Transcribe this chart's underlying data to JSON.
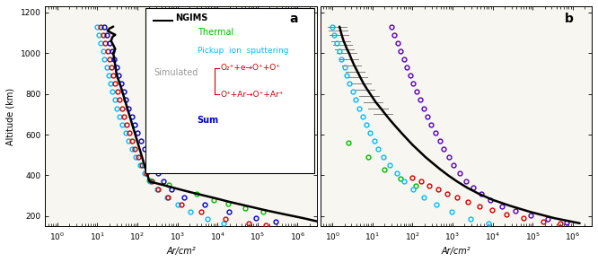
{
  "fig_width": 6.66,
  "fig_height": 2.92,
  "dpi": 100,
  "background_color": "#ffffff",
  "plot_bg": "#f8f6f0",
  "xlim_a": [
    0.5,
    3000000
  ],
  "xlim_b": [
    0.5,
    3000000
  ],
  "ylim": [
    150,
    1230
  ],
  "xlabel": "Ar/cm²",
  "ylabel": "Altitude (km)",
  "panel_labels": [
    "a",
    "b"
  ],
  "ngims_a": {
    "color": "black",
    "altitudes": [
      1130,
      1120,
      1110,
      1100,
      1090,
      1080,
      1060,
      1040,
      1020,
      1000,
      980,
      960,
      940,
      920,
      900,
      880,
      860,
      840,
      370,
      350,
      330,
      310,
      290,
      270,
      250,
      230,
      210,
      190,
      175
    ],
    "values": [
      25,
      20,
      18,
      22,
      28,
      24,
      22,
      25,
      28,
      25,
      26,
      27,
      28,
      29,
      30,
      32,
      35,
      38,
      200,
      500,
      1200,
      3000,
      8000,
      20000,
      55000,
      150000,
      450000,
      1400000,
      3000000
    ]
  },
  "ngims_b": {
    "color": "black",
    "altitudes": [
      1130,
      1110,
      1090,
      1060,
      1040,
      1020,
      1000,
      970,
      940,
      910,
      880,
      850,
      820,
      790,
      760,
      730,
      700,
      670,
      640,
      610,
      580,
      550,
      520,
      490,
      460,
      430,
      400,
      370,
      340,
      310,
      280,
      250,
      220,
      190,
      165
    ],
    "values": [
      1.5,
      1.6,
      1.7,
      1.9,
      2.1,
      2.3,
      2.6,
      3.0,
      3.5,
      4.2,
      5.0,
      6.0,
      7.5,
      9.5,
      12,
      16,
      21,
      28,
      38,
      52,
      72,
      100,
      145,
      210,
      320,
      490,
      780,
      1300,
      2300,
      4500,
      10000,
      28000,
      90000,
      350000,
      1500000
    ]
  },
  "ngims_b_errorbars": {
    "altitudes": [
      1130,
      1110,
      1090,
      1060,
      1040,
      1020,
      1000,
      970,
      940,
      910,
      880,
      850,
      820,
      790,
      760,
      730,
      700
    ],
    "values": [
      1.5,
      1.6,
      1.7,
      1.9,
      2.1,
      2.3,
      2.6,
      3.0,
      3.5,
      4.2,
      5.0,
      6.0,
      7.5,
      9.5,
      12,
      16,
      21
    ],
    "xerr_factor": 0.5
  },
  "thermal_a": {
    "color": "#00bb00",
    "altitudes": [
      375,
      355,
      310,
      280,
      260,
      240,
      220
    ],
    "values": [
      200,
      600,
      3000,
      8000,
      18000,
      50000,
      140000
    ]
  },
  "thermal_b": {
    "color": "#00bb00",
    "altitudes": [
      560,
      490,
      430,
      385,
      350
    ],
    "values": [
      2.5,
      8,
      20,
      50,
      120
    ]
  },
  "pickup_a": {
    "color": "#00bbff",
    "altitudes": [
      1130,
      1090,
      1050,
      1010,
      970,
      930,
      890,
      850,
      810,
      770,
      730,
      690,
      650,
      610,
      570,
      530,
      490,
      450,
      410,
      370,
      330,
      290,
      255,
      220,
      185,
      165
    ],
    "values": [
      10,
      11,
      12,
      14,
      15,
      17,
      19,
      21,
      24,
      27,
      31,
      36,
      42,
      50,
      60,
      73,
      91,
      116,
      155,
      210,
      320,
      540,
      1000,
      2100,
      5500,
      14000
    ]
  },
  "pickup_b": {
    "color": "#00bbff",
    "altitudes": [
      1130,
      1090,
      1050,
      1010,
      970,
      930,
      890,
      850,
      810,
      770,
      730,
      690,
      650,
      610,
      570,
      530,
      490,
      450,
      410,
      370,
      330,
      290,
      255,
      220,
      185,
      165
    ],
    "values": [
      1.0,
      1.1,
      1.3,
      1.5,
      1.7,
      2.0,
      2.3,
      2.7,
      3.2,
      3.8,
      4.6,
      5.6,
      6.9,
      8.7,
      11,
      14,
      19,
      27,
      40,
      62,
      105,
      195,
      400,
      950,
      2800,
      8000
    ]
  },
  "o2e_a": {
    "color": "#cc0000",
    "altitudes": [
      1130,
      1090,
      1050,
      1010,
      970,
      930,
      890,
      850,
      810,
      770,
      730,
      690,
      650,
      610,
      570,
      530,
      490,
      450,
      410,
      370,
      330,
      290,
      255,
      220,
      185,
      165,
      155
    ],
    "values": [
      12,
      14,
      16,
      18,
      20,
      22,
      25,
      28,
      32,
      36,
      41,
      47,
      54,
      63,
      74,
      88,
      107,
      133,
      170,
      225,
      335,
      590,
      1250,
      4000,
      16000,
      60000,
      160000
    ]
  },
  "o2e_b": {
    "color": "#cc0000",
    "altitudes": [
      390,
      370,
      350,
      330,
      310,
      290,
      270,
      250,
      230,
      210,
      190,
      175,
      163
    ],
    "values": [
      100,
      160,
      260,
      430,
      730,
      1300,
      2400,
      4600,
      9500,
      22000,
      60000,
      180000,
      500000
    ]
  },
  "sum_a": {
    "color": "#0000cc",
    "altitudes": [
      1130,
      1090,
      1050,
      1010,
      970,
      930,
      890,
      850,
      810,
      770,
      730,
      690,
      650,
      610,
      570,
      530,
      490,
      450,
      410,
      370,
      330,
      290,
      255,
      220,
      190,
      175
    ],
    "values": [
      15,
      17,
      20,
      23,
      26,
      30,
      34,
      39,
      45,
      52,
      61,
      72,
      85,
      102,
      124,
      153,
      191,
      244,
      325,
      445,
      720,
      1500,
      4800,
      19000,
      90000,
      280000
    ]
  },
  "sum_b": {
    "color": "#5500bb",
    "altitudes": [
      1130,
      1090,
      1050,
      1010,
      970,
      930,
      890,
      850,
      810,
      770,
      730,
      690,
      650,
      610,
      570,
      530,
      490,
      450,
      410,
      370,
      340,
      310,
      280,
      250,
      225,
      205,
      185,
      168
    ],
    "values": [
      30,
      35,
      42,
      50,
      60,
      72,
      87,
      105,
      128,
      156,
      192,
      238,
      296,
      372,
      474,
      610,
      800,
      1070,
      1480,
      2150,
      3300,
      5200,
      8800,
      17000,
      38000,
      90000,
      240000,
      700000
    ]
  },
  "legend": {
    "ngims_label": "NGIMS",
    "thermal_label": "Thermal",
    "thermal_color": "#00bb00",
    "pickup_label": "Pickup  ion  sputtering",
    "pickup_color": "#00bbff",
    "simulated_label": "Simulated",
    "simulated_color": "#999999",
    "o2e_label": "O₂⁺+e→O⁺+O⁺",
    "o2e_color": "#cc0000",
    "oar_label": "O⁺+Ar→O⁺+Ar⁺",
    "oar_color": "#cc0000",
    "sum_label": "Sum",
    "sum_color": "#0000cc"
  }
}
